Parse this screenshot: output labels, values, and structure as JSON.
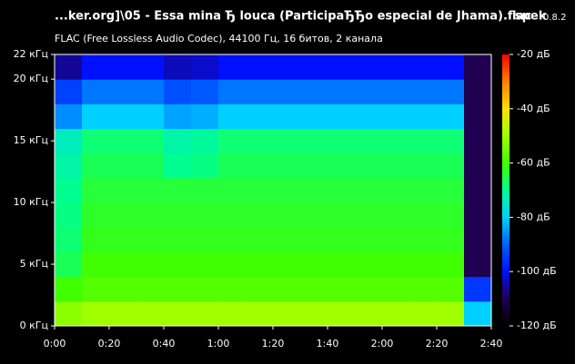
{
  "chart_data": {
    "type": "spectrogram",
    "title": "...ker.org]\\05 - Essa mina Ђ louca (ParticipaЂЂo especial de Jhama).flac",
    "subtitle": "FLAC (Free Lossless Audio Codec), 44100 Гц, 16 битов, 2 канала",
    "app_name": "spek",
    "app_version": "0.8.2",
    "xlim": [
      0,
      160
    ],
    "xticks": [
      {
        "value": 0,
        "label": "0:00"
      },
      {
        "value": 20,
        "label": "0:20"
      },
      {
        "value": 40,
        "label": "0:40"
      },
      {
        "value": 60,
        "label": "1:00"
      },
      {
        "value": 80,
        "label": "1:20"
      },
      {
        "value": 100,
        "label": "1:40"
      },
      {
        "value": 120,
        "label": "2:00"
      },
      {
        "value": 140,
        "label": "2:20"
      },
      {
        "value": 160,
        "label": "2:40"
      }
    ],
    "ylim": [
      0,
      22
    ],
    "yticks": [
      {
        "value": 0,
        "label": "0 кГц"
      },
      {
        "value": 5,
        "label": "5 кГц"
      },
      {
        "value": 10,
        "label": "10 кГц"
      },
      {
        "value": 15,
        "label": "15 кГц"
      },
      {
        "value": 20,
        "label": "20 кГц"
      },
      {
        "value": 22,
        "label": "22 кГц"
      }
    ],
    "zlim": [
      -120,
      -20
    ],
    "zticks": [
      {
        "value": -20,
        "label": "-20 дБ"
      },
      {
        "value": -40,
        "label": "-40 дБ"
      },
      {
        "value": -60,
        "label": "-60 дБ"
      },
      {
        "value": -80,
        "label": "-80 дБ"
      },
      {
        "value": -100,
        "label": "-100 дБ"
      },
      {
        "value": -120,
        "label": "-120 дБ"
      }
    ],
    "colormap": [
      "#000000",
      "#200050",
      "#0010ff",
      "#0060ff",
      "#00d0ff",
      "#00ff90",
      "#40ff00",
      "#a0ff00",
      "#ffe000",
      "#ff8000",
      "#ff0000"
    ],
    "xbins": [
      0,
      10,
      20,
      30,
      40,
      50,
      60,
      70,
      80,
      90,
      100,
      110,
      120,
      130,
      140,
      150,
      160
    ],
    "ybins": [
      0,
      2,
      4,
      6,
      8,
      10,
      12,
      14,
      16,
      18,
      20,
      22
    ],
    "z": [
      [
        -52,
        -50,
        -50,
        -50,
        -50,
        -50,
        -50,
        -50,
        -50,
        -50,
        -50,
        -50,
        -50,
        -50,
        -50,
        -80
      ],
      [
        -60,
        -58,
        -58,
        -58,
        -58,
        -58,
        -58,
        -58,
        -58,
        -58,
        -58,
        -58,
        -58,
        -58,
        -58,
        -95
      ],
      [
        -66,
        -60,
        -60,
        -60,
        -60,
        -60,
        -60,
        -60,
        -60,
        -60,
        -60,
        -60,
        -60,
        -60,
        -60,
        -110
      ],
      [
        -68,
        -62,
        -62,
        -62,
        -62,
        -62,
        -62,
        -62,
        -62,
        -62,
        -62,
        -62,
        -62,
        -62,
        -62,
        -110
      ],
      [
        -69,
        -63,
        -63,
        -63,
        -63,
        -63,
        -63,
        -63,
        -63,
        -63,
        -63,
        -63,
        -63,
        -63,
        -63,
        -110
      ],
      [
        -70,
        -64,
        -64,
        -64,
        -64,
        -64,
        -64,
        -64,
        -64,
        -64,
        -64,
        -64,
        -64,
        -64,
        -64,
        -110
      ],
      [
        -72,
        -66,
        -66,
        -66,
        -70,
        -69,
        -66,
        -66,
        -66,
        -66,
        -66,
        -66,
        -66,
        -66,
        -66,
        -110
      ],
      [
        -74,
        -68,
        -68,
        -68,
        -72,
        -71,
        -68,
        -68,
        -68,
        -68,
        -68,
        -68,
        -68,
        -68,
        -68,
        -110
      ],
      [
        -86,
        -80,
        -80,
        -80,
        -84,
        -83,
        -80,
        -80,
        -80,
        -80,
        -80,
        -80,
        -80,
        -80,
        -80,
        -110
      ],
      [
        -94,
        -88,
        -88,
        -88,
        -92,
        -91,
        -88,
        -88,
        -88,
        -88,
        -88,
        -88,
        -88,
        -88,
        -88,
        -110
      ],
      [
        -106,
        -100,
        -100,
        -100,
        -104,
        -103,
        -100,
        -100,
        -100,
        -100,
        -100,
        -100,
        -100,
        -100,
        -100,
        -110
      ]
    ]
  }
}
